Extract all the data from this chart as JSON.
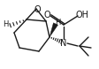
{
  "bg_color": "#ffffff",
  "line_color": "#1a1a1a",
  "lw": 1.0,
  "figsize": [
    1.13,
    0.78
  ],
  "dpi": 100,
  "xlim": [
    0,
    113
  ],
  "ylim": [
    0,
    78
  ]
}
